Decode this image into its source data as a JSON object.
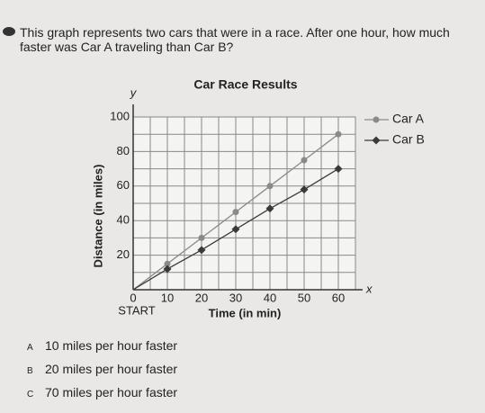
{
  "question": "This graph represents two cars that were in a race. After one hour, how much faster was Car A traveling than Car B?",
  "chart_data": {
    "type": "line",
    "title": "Car Race Results",
    "x_label": "Time (in min)",
    "y_label": "Distance (in miles)",
    "x_axis_letter": "x",
    "y_axis_letter": "y",
    "start_label": "START",
    "x": [
      0,
      10,
      20,
      30,
      40,
      50,
      60
    ],
    "series": [
      {
        "name": "Car A",
        "color": "#8a8a8a",
        "marker": "circle",
        "values": [
          0,
          15,
          30,
          45,
          60,
          75,
          90
        ]
      },
      {
        "name": "Car B",
        "color": "#3a3a3a",
        "marker": "diamond",
        "values": [
          0,
          12,
          23,
          35,
          47,
          58,
          70
        ]
      }
    ],
    "xlim": [
      0,
      65
    ],
    "ylim": [
      0,
      100
    ],
    "xticks": [
      0,
      10,
      20,
      30,
      40,
      50,
      60
    ],
    "yticks": [
      20,
      40,
      60,
      80,
      100
    ],
    "minor_xticks": [
      5,
      15,
      25,
      35,
      45,
      55,
      65
    ],
    "minor_yticks": [
      10,
      30,
      50,
      70,
      90
    ],
    "grid": true,
    "legend": "right"
  },
  "options": [
    {
      "letter": "A",
      "text": "10 miles per hour faster"
    },
    {
      "letter": "B",
      "text": "20 miles per hour faster"
    },
    {
      "letter": "C",
      "text": "70 miles per hour faster"
    }
  ]
}
